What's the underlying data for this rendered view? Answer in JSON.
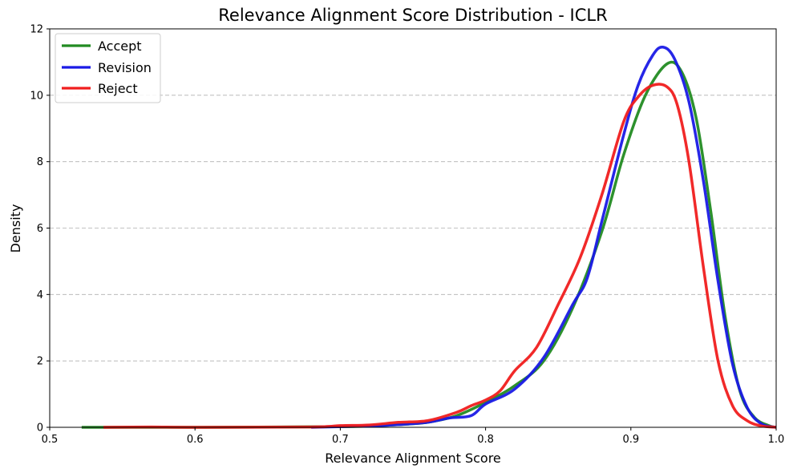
{
  "chart_data": {
    "type": "line",
    "title": "Relevance Alignment Score Distribution - ICLR",
    "xlabel": "Relevance Alignment Score",
    "ylabel": "Density",
    "xlim": [
      0.5,
      1.0
    ],
    "ylim": [
      0,
      12
    ],
    "xticks": [
      "0.5",
      "0.6",
      "0.7",
      "0.8",
      "0.9",
      "1.0"
    ],
    "yticks": [
      "0",
      "2",
      "4",
      "6",
      "8",
      "10",
      "12"
    ],
    "grid": "y-dashed",
    "legend_position": "top-left",
    "series": [
      {
        "name": "Accept",
        "color": "#228b22",
        "points": [
          [
            0.522,
            0.0
          ],
          [
            0.6,
            0.0
          ],
          [
            0.7,
            0.02
          ],
          [
            0.72,
            0.04
          ],
          [
            0.74,
            0.08
          ],
          [
            0.76,
            0.15
          ],
          [
            0.78,
            0.35
          ],
          [
            0.8,
            0.75
          ],
          [
            0.82,
            1.25
          ],
          [
            0.84,
            2.0
          ],
          [
            0.86,
            3.6
          ],
          [
            0.88,
            5.9
          ],
          [
            0.895,
            8.2
          ],
          [
            0.91,
            10.0
          ],
          [
            0.925,
            10.95
          ],
          [
            0.935,
            10.7
          ],
          [
            0.945,
            9.3
          ],
          [
            0.955,
            6.5
          ],
          [
            0.965,
            3.3
          ],
          [
            0.975,
            1.1
          ],
          [
            0.985,
            0.3
          ],
          [
            0.995,
            0.05
          ],
          [
            1.0,
            0.0
          ]
        ]
      },
      {
        "name": "Revision",
        "color": "#1a1ae6",
        "points": [
          [
            0.68,
            0.0
          ],
          [
            0.72,
            0.04
          ],
          [
            0.74,
            0.08
          ],
          [
            0.76,
            0.15
          ],
          [
            0.775,
            0.28
          ],
          [
            0.79,
            0.35
          ],
          [
            0.8,
            0.7
          ],
          [
            0.82,
            1.15
          ],
          [
            0.84,
            2.1
          ],
          [
            0.86,
            3.7
          ],
          [
            0.87,
            4.5
          ],
          [
            0.88,
            6.2
          ],
          [
            0.895,
            8.8
          ],
          [
            0.905,
            10.3
          ],
          [
            0.915,
            11.2
          ],
          [
            0.922,
            11.45
          ],
          [
            0.93,
            11.1
          ],
          [
            0.94,
            9.8
          ],
          [
            0.95,
            7.4
          ],
          [
            0.96,
            4.4
          ],
          [
            0.97,
            1.9
          ],
          [
            0.98,
            0.6
          ],
          [
            0.99,
            0.1
          ],
          [
            1.0,
            0.0
          ]
        ]
      },
      {
        "name": "Reject",
        "color": "#f01e1e",
        "points": [
          [
            0.537,
            0.0
          ],
          [
            0.57,
            0.01
          ],
          [
            0.6,
            0.0
          ],
          [
            0.68,
            0.01
          ],
          [
            0.7,
            0.05
          ],
          [
            0.72,
            0.07
          ],
          [
            0.74,
            0.15
          ],
          [
            0.76,
            0.2
          ],
          [
            0.78,
            0.45
          ],
          [
            0.79,
            0.65
          ],
          [
            0.8,
            0.82
          ],
          [
            0.81,
            1.1
          ],
          [
            0.82,
            1.7
          ],
          [
            0.835,
            2.4
          ],
          [
            0.85,
            3.7
          ],
          [
            0.865,
            5.1
          ],
          [
            0.88,
            7.0
          ],
          [
            0.895,
            9.2
          ],
          [
            0.905,
            9.95
          ],
          [
            0.915,
            10.3
          ],
          [
            0.925,
            10.25
          ],
          [
            0.932,
            9.7
          ],
          [
            0.94,
            8.0
          ],
          [
            0.95,
            4.8
          ],
          [
            0.96,
            2.0
          ],
          [
            0.97,
            0.65
          ],
          [
            0.98,
            0.2
          ],
          [
            0.99,
            0.04
          ],
          [
            1.0,
            0.0
          ]
        ]
      }
    ]
  }
}
